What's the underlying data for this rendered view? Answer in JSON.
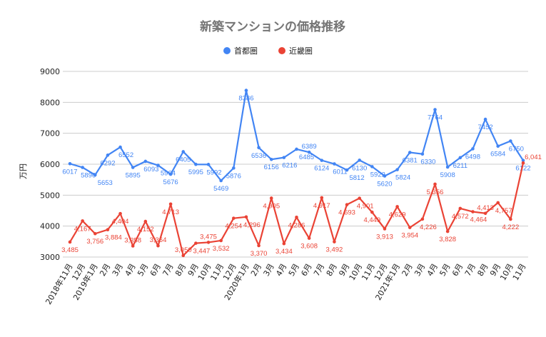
{
  "chart_data": {
    "type": "line",
    "title": "新築マンションの価格推移",
    "xlabel": "",
    "ylabel": "万円",
    "ylim": [
      3000,
      9000
    ],
    "yticks": [
      3000,
      4000,
      5000,
      6000,
      7000,
      8000,
      9000
    ],
    "grid": true,
    "legend_position": "top",
    "categories": [
      "2018年11月",
      "12月",
      "2019年1月",
      "2月",
      "3月",
      "4月",
      "5月",
      "6月",
      "7月",
      "8月",
      "9月",
      "10月",
      "11月",
      "12月",
      "2020年1月",
      "2月",
      "3月",
      "4月",
      "5月",
      "6月",
      "7月",
      "8月",
      "9月",
      "10月",
      "11月",
      "12月",
      "2021年1月",
      "2月",
      "3月",
      "4月",
      "5月",
      "6月",
      "7月",
      "8月",
      "9月",
      "10月",
      "11月"
    ],
    "series": [
      {
        "name": "首都圏",
        "color": "#4285f4",
        "values": [
          6017,
          5896,
          5653,
          6292,
          6552,
          5895,
          6093,
          5964,
          5676,
          6405,
          5995,
          5992,
          5469,
          5876,
          8386,
          6536,
          6156,
          6216,
          6485,
          6389,
          6124,
          6011,
          5812,
          6130,
          5922,
          5620,
          5824,
          6381,
          6330,
          7764,
          5908,
          6211,
          6498,
          7452,
          6584,
          6750,
          6122
        ],
        "labels": [
          "6017",
          "5896",
          "5653",
          "6292",
          "6552",
          "5895",
          "6093",
          "5964",
          "5676",
          "6405",
          "5995",
          "5992",
          "5469",
          "5876",
          "8386",
          "6536",
          "6156",
          "6216",
          "6485",
          "6389",
          "6124",
          "6011",
          "5812",
          "6130",
          "5922",
          "5620",
          "5824",
          "6381",
          "6330",
          "7764",
          "5908",
          "6211",
          "6498",
          "7452",
          "6584",
          "6750",
          "6122"
        ]
      },
      {
        "name": "近畿圏",
        "color": "#ea4335",
        "values": [
          3485,
          4167,
          3756,
          3884,
          4404,
          3358,
          4152,
          3364,
          4713,
          3050,
          3447,
          3475,
          3532,
          4254,
          4296,
          3370,
          4905,
          3434,
          4286,
          3608,
          4917,
          3492,
          4693,
          4901,
          4449,
          3913,
          4629,
          3954,
          4226,
          5356,
          3828,
          4572,
          4464,
          4413,
          4757,
          4222,
          6041
        ],
        "labels": [
          "3,485",
          "4,167",
          "3,756",
          "3,884",
          "4,404",
          "3,358",
          "4,152",
          "3,364",
          "4,713",
          "3,050",
          "3,447",
          "3,475",
          "3,532",
          "4,254",
          "4,296",
          "3,370",
          "4,905",
          "3,434",
          "4,286",
          "3,608",
          "4,917",
          "3,492",
          "4,693",
          "4,901",
          "4,449",
          "3,913",
          "4,629",
          "3,954",
          "4,226",
          "5,356",
          "3,828",
          "4,572",
          "4,464",
          "4,413",
          "4,757",
          "4,222",
          "6,041"
        ]
      }
    ]
  }
}
